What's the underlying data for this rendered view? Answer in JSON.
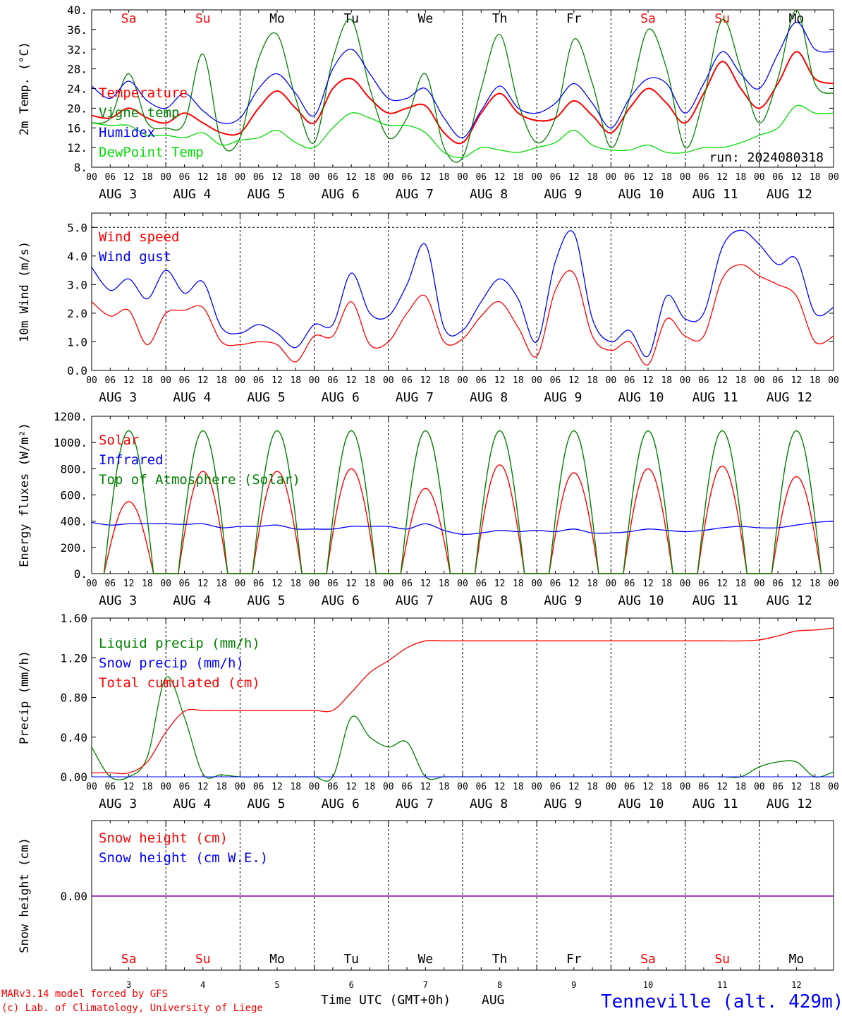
{
  "colors": {
    "red": "#ff0000",
    "blue": "#0000ff",
    "green": "#008000",
    "lightgreen": "#00dd00",
    "purple": "#8000a0",
    "black": "#000000"
  },
  "days": {
    "abbr": [
      "Sa",
      "Su",
      "Mo",
      "Tu",
      "We",
      "Th",
      "Fr",
      "Sa",
      "Su",
      "Mo"
    ],
    "weekend": [
      true,
      true,
      false,
      false,
      false,
      false,
      false,
      true,
      true,
      false
    ],
    "month": "AUG",
    "numbers": [
      "3",
      "4",
      "5",
      "6",
      "7",
      "8",
      "9",
      "10",
      "11",
      "12"
    ]
  },
  "hour_ticks": [
    "00",
    "06",
    "12",
    "18"
  ],
  "hour_tick_last": "00",
  "footer": {
    "credit1": "MARv3.14 model forced by GFS",
    "credit2": "(c) Lab. of Climatology, University of Liege",
    "xlabel": "Time UTC (GMT+0h)",
    "month": "AUG",
    "station": "Tenneville (alt. 429m)"
  },
  "chart_data": [
    {
      "type": "line",
      "ylabel": "2m Temp. (°C)",
      "ylim": [
        8,
        40
      ],
      "yticks": [
        "8.",
        "12.",
        "16.",
        "20.",
        "24.",
        "28.",
        "32.",
        "36.",
        "40."
      ],
      "annotation": "run: 2024080318",
      "grid": "vertical dashed at 00 UTC",
      "x_hours": [
        0,
        6,
        12,
        18,
        24,
        30,
        36,
        42,
        48,
        54,
        60,
        66,
        72,
        78,
        84,
        90,
        96,
        102,
        108,
        114,
        120,
        126,
        132,
        138,
        144,
        150,
        156,
        162,
        168,
        174,
        180,
        186,
        192,
        198,
        204,
        210,
        216,
        222,
        228,
        234,
        240
      ],
      "series": [
        {
          "name": "Temperature",
          "color": "red",
          "values": [
            18.5,
            18,
            20,
            18,
            17,
            19,
            17,
            15,
            15,
            20,
            23.5,
            20,
            17,
            24,
            26,
            22,
            19,
            20,
            20.5,
            15,
            13,
            19,
            23,
            19,
            17.5,
            18,
            21.5,
            18.5,
            15,
            20,
            24,
            21,
            17,
            23,
            29.5,
            24,
            20,
            25,
            31.5,
            26,
            25
          ]
        },
        {
          "name": "Vigne temp",
          "color": "green",
          "values": [
            17,
            18,
            27,
            17,
            16,
            17,
            31,
            13,
            14,
            30,
            35,
            22,
            13,
            30,
            38,
            24,
            14,
            18,
            27,
            12,
            10,
            24,
            35,
            21,
            13,
            18,
            34,
            25,
            12,
            22,
            36,
            28,
            12,
            22,
            38,
            28,
            17,
            26,
            40,
            25,
            23
          ]
        },
        {
          "name": "Humidex",
          "color": "blue",
          "values": [
            24.5,
            22,
            25.5,
            21.5,
            20,
            23,
            19.5,
            17,
            18,
            24,
            27,
            23,
            18.5,
            28,
            32,
            27,
            22,
            22,
            24,
            18,
            14,
            19.5,
            24.5,
            20,
            19,
            21,
            25,
            21,
            16,
            22,
            26,
            25,
            19,
            25,
            31.5,
            27,
            24,
            31,
            37.5,
            32,
            31.5
          ]
        },
        {
          "name": "DewPoint Temp",
          "color": "lightgreen",
          "values": [
            17,
            16.5,
            16.5,
            14.5,
            14.5,
            14,
            15,
            12.5,
            13.5,
            14,
            15.5,
            13,
            12,
            16,
            19,
            18,
            16.5,
            16.5,
            15,
            11,
            10,
            12,
            11.5,
            11,
            12,
            13,
            15.5,
            12.5,
            11.5,
            11.5,
            12.5,
            11,
            11,
            12,
            12,
            13,
            14.5,
            16,
            20.5,
            19,
            19
          ]
        }
      ]
    },
    {
      "type": "line",
      "ylabel": "10m Wind (m/s)",
      "ylim": [
        0,
        5.5
      ],
      "yticks": [
        "0.0",
        "1.0",
        "2.0",
        "3.0",
        "4.0",
        "5.0"
      ],
      "grid": "vertical dashed at 00 UTC, horizontal dashed at 5.0",
      "x_hours": [
        0,
        6,
        12,
        18,
        24,
        30,
        36,
        42,
        48,
        54,
        60,
        66,
        72,
        78,
        84,
        90,
        96,
        102,
        108,
        114,
        120,
        126,
        132,
        138,
        144,
        150,
        156,
        162,
        168,
        174,
        180,
        186,
        192,
        198,
        204,
        210,
        216,
        222,
        228,
        234,
        240
      ],
      "series": [
        {
          "name": "Wind speed",
          "color": "red",
          "values": [
            2.4,
            1.9,
            2.1,
            0.9,
            2.0,
            2.1,
            2.2,
            1.0,
            0.9,
            1.0,
            0.9,
            0.3,
            1.2,
            1.2,
            2.4,
            0.9,
            1.0,
            2.0,
            2.6,
            1.0,
            1.1,
            1.9,
            2.4,
            1.5,
            0.5,
            2.8,
            3.4,
            1.2,
            0.7,
            1.0,
            0.2,
            1.8,
            1.2,
            1.2,
            3.2,
            3.7,
            3.3,
            3.0,
            2.6,
            1.0,
            1.2
          ]
        },
        {
          "name": "Wind gust",
          "color": "blue",
          "values": [
            3.6,
            2.8,
            3.2,
            2.5,
            3.5,
            2.7,
            3.1,
            1.5,
            1.3,
            1.6,
            1.3,
            0.8,
            1.6,
            1.6,
            3.4,
            2.0,
            1.9,
            3.0,
            4.4,
            1.5,
            1.4,
            2.4,
            3.2,
            2.5,
            1.0,
            3.8,
            4.8,
            1.8,
            1.0,
            1.4,
            0.5,
            2.6,
            1.8,
            2.0,
            4.3,
            4.9,
            4.4,
            3.7,
            3.9,
            2.0,
            2.2
          ]
        }
      ]
    },
    {
      "type": "line",
      "ylabel": "Energy fluxes (W/m²)",
      "ylim": [
        0,
        1200
      ],
      "yticks": [
        "0.",
        "200.",
        "400.",
        "600.",
        "800.",
        "1000.",
        "1200."
      ],
      "grid": "vertical dashed at 00 UTC",
      "solar_peaks": [
        550,
        780,
        780,
        800,
        650,
        830,
        770,
        800,
        820,
        740
      ],
      "toa_peak": 1090,
      "series": [
        {
          "name": "Solar",
          "color": "red",
          "values": [
            0,
            0,
            550,
            0,
            0,
            0,
            780,
            0,
            0,
            0,
            780,
            0,
            0,
            0,
            800,
            0,
            0,
            0,
            650,
            0,
            0,
            0,
            830,
            0,
            0,
            0,
            770,
            0,
            0,
            0,
            800,
            0,
            0,
            0,
            820,
            0,
            0,
            0,
            740,
            0,
            0
          ]
        },
        {
          "name": "Infrared",
          "color": "blue",
          "values": [
            390,
            370,
            380,
            380,
            380,
            375,
            380,
            350,
            360,
            360,
            370,
            340,
            340,
            340,
            360,
            360,
            360,
            340,
            380,
            330,
            300,
            310,
            330,
            320,
            330,
            320,
            340,
            310,
            310,
            320,
            340,
            330,
            320,
            330,
            350,
            360,
            350,
            350,
            370,
            390,
            400
          ]
        },
        {
          "name": "Top of Atmosphere (Solar)",
          "color": "green",
          "values": [
            0,
            0,
            1090,
            0,
            0,
            0,
            1090,
            0,
            0,
            0,
            1090,
            0,
            0,
            0,
            1090,
            0,
            0,
            0,
            1090,
            0,
            0,
            0,
            1090,
            0,
            0,
            0,
            1090,
            0,
            0,
            0,
            1090,
            0,
            0,
            0,
            1090,
            0,
            0,
            0,
            1090,
            0,
            0
          ]
        }
      ]
    },
    {
      "type": "line",
      "ylabel": "Precip (mm/h)",
      "ylim": [
        0,
        1.6
      ],
      "yticks": [
        "0.00",
        "0.40",
        "0.80",
        "1.20",
        "1.60"
      ],
      "grid": "vertical dashed at 00 UTC",
      "series": [
        {
          "name": "Liquid precip (mm/h)",
          "color": "green",
          "values": [
            0.3,
            0,
            0,
            0.2,
            1.0,
            0.6,
            0.03,
            0.02,
            0,
            0,
            0,
            0,
            0,
            0,
            0.6,
            0.4,
            0.3,
            0.35,
            0,
            0,
            0,
            0,
            0,
            0,
            0,
            0,
            0,
            0,
            0,
            0,
            0,
            0,
            0,
            0,
            0,
            0,
            0.1,
            0.15,
            0.15,
            0,
            0.05
          ]
        },
        {
          "name": "Snow precip (mm/h)",
          "color": "blue",
          "values": [
            0,
            0,
            0,
            0,
            0,
            0,
            0,
            0,
            0,
            0,
            0,
            0,
            0,
            0,
            0,
            0,
            0,
            0,
            0,
            0,
            0,
            0,
            0,
            0,
            0,
            0,
            0,
            0,
            0,
            0,
            0,
            0,
            0,
            0,
            0,
            0,
            0,
            0,
            0,
            0,
            0
          ]
        },
        {
          "name": "Total cumulated (cm)",
          "color": "red",
          "values": [
            0.04,
            0.04,
            0.04,
            0.15,
            0.45,
            0.66,
            0.67,
            0.67,
            0.67,
            0.67,
            0.67,
            0.67,
            0.67,
            0.67,
            0.85,
            1.05,
            1.17,
            1.3,
            1.37,
            1.37,
            1.37,
            1.37,
            1.37,
            1.37,
            1.37,
            1.37,
            1.37,
            1.37,
            1.37,
            1.37,
            1.37,
            1.37,
            1.37,
            1.37,
            1.37,
            1.37,
            1.38,
            1.42,
            1.47,
            1.48,
            1.5
          ]
        }
      ]
    },
    {
      "type": "line",
      "ylabel": "Snow height (cm)",
      "yticks": [
        "0.00"
      ],
      "grid": "vertical dashed at 00 UTC",
      "series": [
        {
          "name": "Snow height (cm)",
          "color": "red",
          "values": [
            0,
            0
          ]
        },
        {
          "name": "Snow height (cm W.E.)",
          "color": "blue",
          "values": [
            0,
            0
          ]
        }
      ]
    }
  ]
}
